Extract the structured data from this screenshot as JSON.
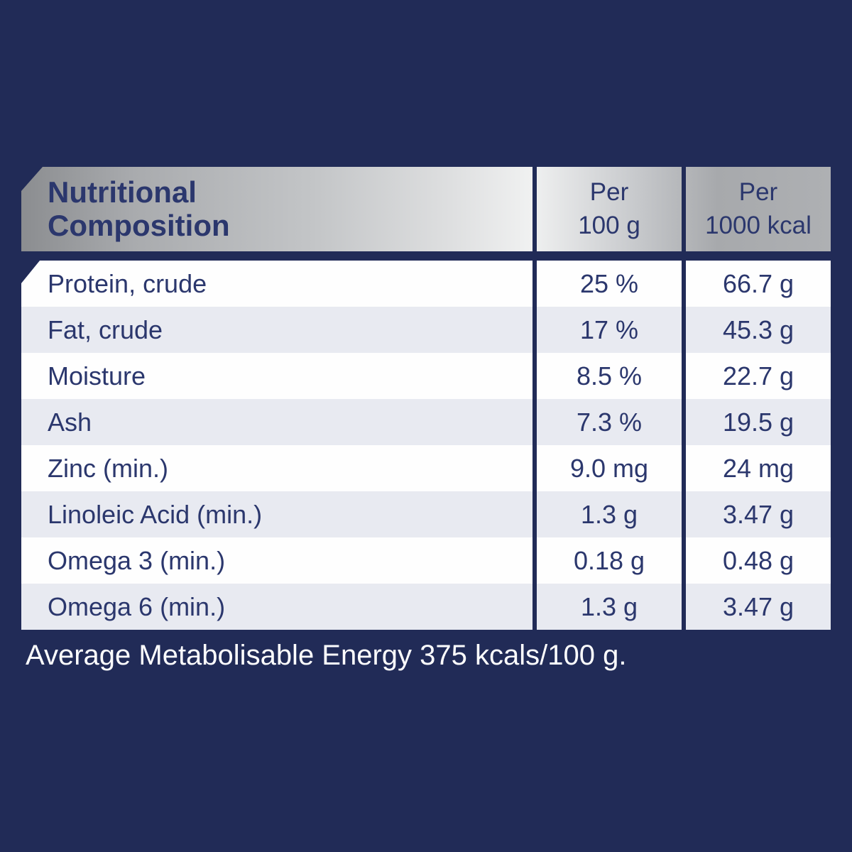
{
  "colors": {
    "background_navy": "#212b57",
    "table_text_navy": "#2b376d",
    "row_white": "#fefefe",
    "row_alt_gray": "#e8eaf1",
    "header_silver_dark": "#8b8d90",
    "header_silver_light": "#f0f1f1",
    "footer_text": "#fdfdfe"
  },
  "table": {
    "title": "Nutritional Composition",
    "title_lines": {
      "line1": "Nutritional",
      "line2": "Composition"
    },
    "columns": [
      {
        "line1": "Per",
        "line2": "100 g"
      },
      {
        "line1": "Per",
        "line2": "1000 kcal"
      }
    ],
    "rows": [
      {
        "label": "Protein, crude",
        "per100g": "25 %",
        "per1000kcal": "66.7 g"
      },
      {
        "label": "Fat, crude",
        "per100g": "17 %",
        "per1000kcal": "45.3 g"
      },
      {
        "label": "Moisture",
        "per100g": "8.5 %",
        "per1000kcal": "22.7 g"
      },
      {
        "label": "Ash",
        "per100g": "7.3 %",
        "per1000kcal": "19.5 g"
      },
      {
        "label": "Zinc (min.)",
        "per100g": "9.0 mg",
        "per1000kcal": "24 mg"
      },
      {
        "label": "Linoleic Acid (min.)",
        "per100g": "1.3 g",
        "per1000kcal": "3.47 g"
      },
      {
        "label": "Omega 3 (min.)",
        "per100g": "0.18 g",
        "per1000kcal": "0.48 g"
      },
      {
        "label": "Omega 6 (min.)",
        "per100g": "1.3 g",
        "per1000kcal": "3.47 g"
      }
    ]
  },
  "footer": {
    "text": "Average Metabolisable Energy 375 kcals/100 g."
  }
}
